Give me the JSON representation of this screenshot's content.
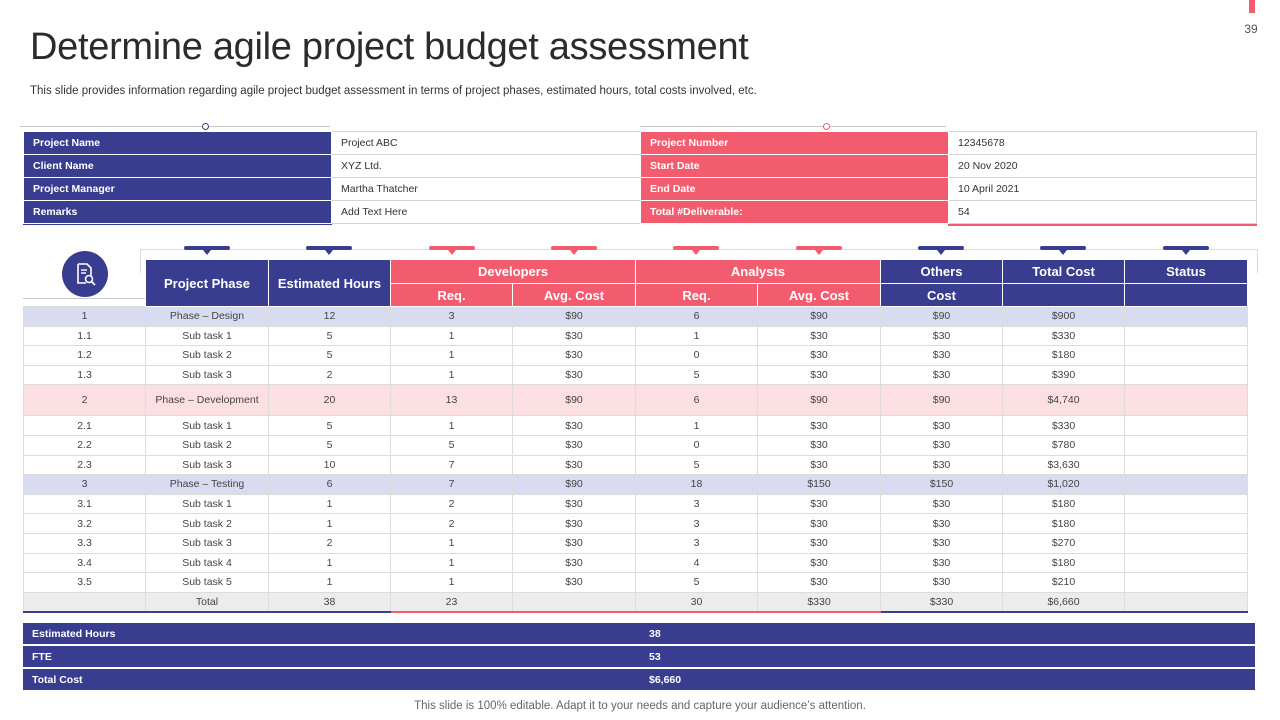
{
  "slide": {
    "page_number": "39",
    "title": "Determine agile project budget assessment",
    "subtitle": "This slide provides information regarding agile project budget assessment in terms of project phases, estimated hours, total costs involved, etc.",
    "footer": "This slide is 100% editable. Adapt it to your needs and capture your audience’s attention."
  },
  "colors": {
    "navy": "#383d8f",
    "coral": "#f25c6e",
    "lavender": "#d9dbf0",
    "pink": "#fcdfe2"
  },
  "project_info": {
    "left": [
      {
        "label": "Project Name",
        "value": "Project ABC"
      },
      {
        "label": "Client Name",
        "value": "XYZ Ltd."
      },
      {
        "label": "Project Manager",
        "value": "Martha Thatcher"
      },
      {
        "label": "Remarks",
        "value": "Add Text Here"
      }
    ],
    "right": [
      {
        "label": "Project Number",
        "value": "12345678"
      },
      {
        "label": "Start Date",
        "value": "20 Nov 2020"
      },
      {
        "label": "End Date",
        "value": "10 April 2021"
      },
      {
        "label": "Total #Deliverable:",
        "value": "54"
      }
    ]
  },
  "budget_table": {
    "icon": "document-search-icon",
    "headers": {
      "project_phase": "Project Phase",
      "estimated_hours": "Estimated Hours",
      "developers": "Developers",
      "analysts": "Analysts",
      "others": "Others",
      "total_cost": "Total Cost",
      "status": "Status",
      "req": "Req.",
      "avg_cost": "Avg. Cost",
      "cost": "Cost"
    },
    "rows": [
      [
        "1",
        "Phase – Design",
        "12",
        "3",
        "$90",
        "6",
        "$90",
        "$90",
        "$900",
        ""
      ],
      [
        "1.1",
        "Sub task 1",
        "5",
        "1",
        "$30",
        "1",
        "$30",
        "$30",
        "$330",
        ""
      ],
      [
        "1.2",
        "Sub task 2",
        "5",
        "1",
        "$30",
        "0",
        "$30",
        "$30",
        "$180",
        ""
      ],
      [
        "1.3",
        "Sub task 3",
        "2",
        "1",
        "$30",
        "5",
        "$30",
        "$30",
        "$390",
        ""
      ],
      [
        "2",
        "Phase – Development",
        "20",
        "13",
        "$90",
        "6",
        "$90",
        "$90",
        "$4,740",
        ""
      ],
      [
        "2.1",
        "Sub task 1",
        "5",
        "1",
        "$30",
        "1",
        "$30",
        "$30",
        "$330",
        ""
      ],
      [
        "2.2",
        "Sub task 2",
        "5",
        "5",
        "$30",
        "0",
        "$30",
        "$30",
        "$780",
        ""
      ],
      [
        "2.3",
        "Sub task 3",
        "10",
        "7",
        "$30",
        "5",
        "$30",
        "$30",
        "$3,630",
        ""
      ],
      [
        "3",
        "Phase – Testing",
        "6",
        "7",
        "$90",
        "18",
        "$150",
        "$150",
        "$1,020",
        ""
      ],
      [
        "3.1",
        "Sub task 1",
        "1",
        "2",
        "$30",
        "3",
        "$30",
        "$30",
        "$180",
        ""
      ],
      [
        "3.2",
        "Sub task 2",
        "1",
        "2",
        "$30",
        "3",
        "$30",
        "$30",
        "$180",
        ""
      ],
      [
        "3.3",
        "Sub task 3",
        "2",
        "1",
        "$30",
        "3",
        "$30",
        "$30",
        "$270",
        ""
      ],
      [
        "3.4",
        "Sub task 4",
        "1",
        "1",
        "$30",
        "4",
        "$30",
        "$30",
        "$180",
        ""
      ],
      [
        "3.5",
        "Sub task 5",
        "1",
        "1",
        "$30",
        "5",
        "$30",
        "$30",
        "$210",
        ""
      ],
      [
        "",
        "Total",
        "38",
        "23",
        "",
        "30",
        "$330",
        "$330",
        "$6,660",
        ""
      ]
    ],
    "row_styles": [
      "lav",
      "",
      "",
      "",
      "pink",
      "",
      "",
      "",
      "lav",
      "",
      "",
      "",
      "",
      "",
      "total"
    ]
  },
  "summary": [
    {
      "label": "Estimated Hours",
      "value": "38"
    },
    {
      "label": "FTE",
      "value": "53"
    },
    {
      "label": "Total Cost",
      "value": "$6,660"
    }
  ]
}
